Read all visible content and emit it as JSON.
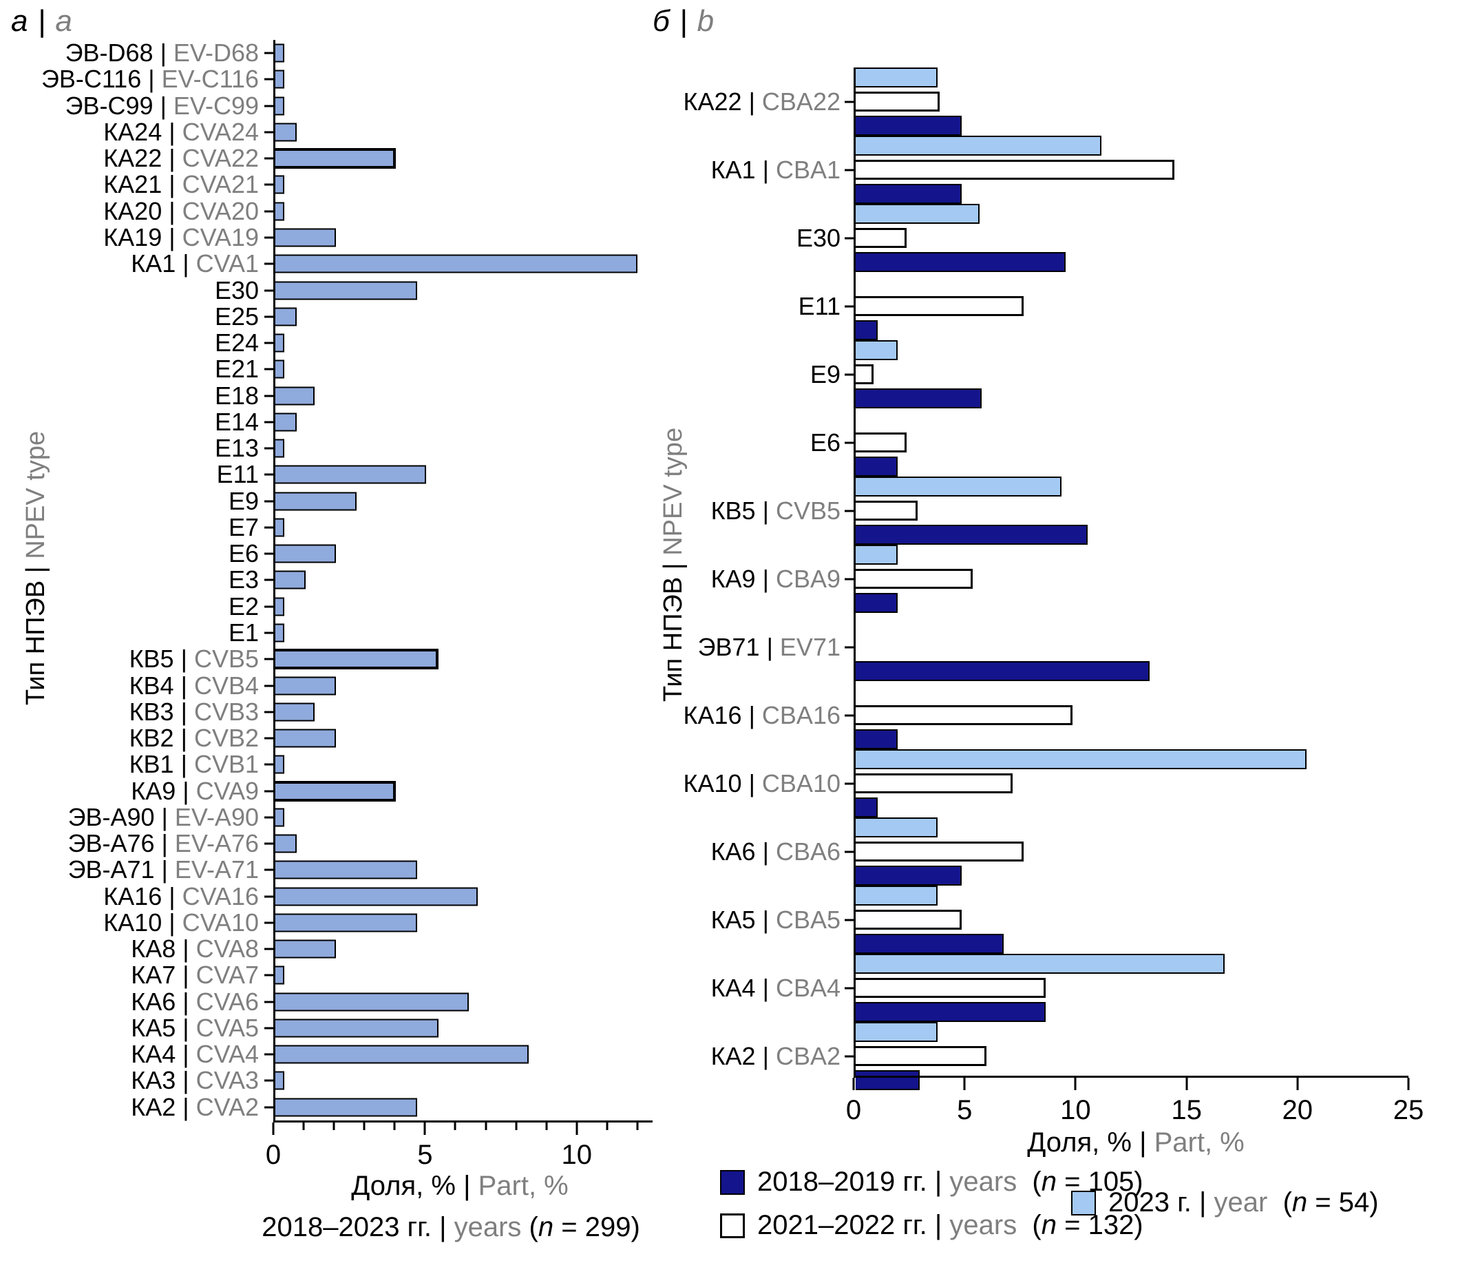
{
  "sep": " | ",
  "n_open": "(",
  "n_symbol": "n",
  "n_eq": " = ",
  "n_close": ")",
  "colors": {
    "bar_a": "#8faadc",
    "series_2018_2019": "#14148c",
    "series_2021_2022": "#ffffff",
    "series_2023": "#a4c9f2",
    "axis": "#000000",
    "secondary_text": "#7f7f7f"
  },
  "chart_data": [
    {
      "id": "a",
      "type": "bar",
      "orientation": "horizontal",
      "panel_label_ru": "а",
      "panel_label_en": "a",
      "ylabel_ru": "Тип НПЭВ",
      "ylabel_en": "NPEV type",
      "xlabel_ru": "Доля, %",
      "xlabel_en": "Part, %",
      "caption": {
        "ru": "2018–2023 гг.",
        "en": "years",
        "n": "299"
      },
      "xlim": [
        0,
        12.5
      ],
      "x_ticks": [
        0,
        5,
        10
      ],
      "x_minor_step": 1,
      "legend_position": "none",
      "grid": false,
      "rows": [
        {
          "ru": "ЭВ-D68",
          "en": "EV-D68",
          "value": 0.3
        },
        {
          "ru": "ЭВ-C116",
          "en": "EV-C116",
          "value": 0.3
        },
        {
          "ru": "ЭВ-C99",
          "en": "EV-C99",
          "value": 0.3
        },
        {
          "ru": "КА24",
          "en": "CVA24",
          "value": 0.7
        },
        {
          "ru": "КА22",
          "en": "CVA22",
          "value": 4.0,
          "bold": true
        },
        {
          "ru": "КА21",
          "en": "CVA21",
          "value": 0.3
        },
        {
          "ru": "КА20",
          "en": "CVA20",
          "value": 0.3
        },
        {
          "ru": "КА19",
          "en": "CVA19",
          "value": 2.0
        },
        {
          "ru": "КА1",
          "en": "CVA1",
          "value": 12.0
        },
        {
          "ru": "E30",
          "value": 4.7
        },
        {
          "ru": "E25",
          "value": 0.7
        },
        {
          "ru": "E24",
          "value": 0.3
        },
        {
          "ru": "E21",
          "value": 0.3
        },
        {
          "ru": "E18",
          "value": 1.3
        },
        {
          "ru": "E14",
          "value": 0.7
        },
        {
          "ru": "E13",
          "value": 0.3
        },
        {
          "ru": "E11",
          "value": 5.0
        },
        {
          "ru": "E9",
          "value": 2.7
        },
        {
          "ru": "E7",
          "value": 0.3
        },
        {
          "ru": "E6",
          "value": 2.0
        },
        {
          "ru": "E3",
          "value": 1.0
        },
        {
          "ru": "E2",
          "value": 0.3
        },
        {
          "ru": "E1",
          "value": 0.3
        },
        {
          "ru": "КВ5",
          "en": "CVB5",
          "value": 5.4,
          "bold": true
        },
        {
          "ru": "КВ4",
          "en": "CVB4",
          "value": 2.0
        },
        {
          "ru": "КВ3",
          "en": "CVB3",
          "value": 1.3
        },
        {
          "ru": "КВ2",
          "en": "CVB2",
          "value": 2.0
        },
        {
          "ru": "КВ1",
          "en": "CVB1",
          "value": 0.3
        },
        {
          "ru": "КА9",
          "en": "CVA9",
          "value": 4.0,
          "bold": true
        },
        {
          "ru": "ЭВ-А90",
          "en": "EV-A90",
          "value": 0.3
        },
        {
          "ru": "ЭВ-А76",
          "en": "EV-A76",
          "value": 0.7
        },
        {
          "ru": "ЭВ-А71",
          "en": "EV-A71",
          "value": 4.7
        },
        {
          "ru": "КА16",
          "en": "CVA16",
          "value": 6.7
        },
        {
          "ru": "КА10",
          "en": "CVA10",
          "value": 4.7
        },
        {
          "ru": "КА8",
          "en": "CVA8",
          "value": 2.0
        },
        {
          "ru": "КА7",
          "en": "CVA7",
          "value": 0.3
        },
        {
          "ru": "КА6",
          "en": "CVA6",
          "value": 6.4
        },
        {
          "ru": "КА5",
          "en": "CVA5",
          "value": 5.4
        },
        {
          "ru": "КА4",
          "en": "CVA4",
          "value": 8.4
        },
        {
          "ru": "КА3",
          "en": "CVA3",
          "value": 0.3
        },
        {
          "ru": "КА2",
          "en": "CVA2",
          "value": 4.7
        }
      ]
    },
    {
      "id": "b",
      "type": "bar",
      "orientation": "horizontal",
      "panel_label_ru": "б",
      "panel_label_en": "b",
      "ylabel_ru": "Тип НПЭВ",
      "ylabel_en": "NPEV type",
      "xlabel_ru": "Доля, %",
      "xlabel_en": "Part, %",
      "xlim": [
        0,
        25
      ],
      "x_ticks": [
        0,
        5,
        10,
        15,
        20,
        25
      ],
      "grid": false,
      "legend_position": "bottom",
      "group_order": [
        "y2023",
        "y2122",
        "y1819"
      ],
      "series": [
        {
          "key": "y1819",
          "label_ru": "2018–2019 гг.",
          "label_en": "years",
          "n": "105",
          "color": "#14148c",
          "border_px": 2
        },
        {
          "key": "y2122",
          "label_ru": "2021–2022 гг.",
          "label_en": "years",
          "n": "132",
          "color": "#ffffff",
          "border_px": 3
        },
        {
          "key": "y2023",
          "label_ru": "2023 г.",
          "label_en": "year",
          "n": "54",
          "color": "#a4c9f2",
          "border_px": 2
        }
      ],
      "rows": [
        {
          "ru": "КА22",
          "en": "CBA22",
          "y2023": 3.7,
          "y2122": 3.8,
          "y1819": 4.8
        },
        {
          "ru": "КА1",
          "en": "CBA1",
          "y2023": 11.1,
          "y2122": 14.4,
          "y1819": 4.8
        },
        {
          "ru": "E30",
          "y2023": 5.6,
          "y2122": 2.3,
          "y1819": 9.5
        },
        {
          "ru": "E11",
          "y2023": 0,
          "y2122": 7.6,
          "y1819": 1.0
        },
        {
          "ru": "E9",
          "y2023": 1.9,
          "y2122": 0.8,
          "y1819": 5.7
        },
        {
          "ru": "E6",
          "y2023": 0,
          "y2122": 2.3,
          "y1819": 1.9
        },
        {
          "ru": "КВ5",
          "en": "CVB5",
          "y2023": 9.3,
          "y2122": 2.8,
          "y1819": 10.5
        },
        {
          "ru": "КА9",
          "en": "CBA9",
          "y2023": 1.9,
          "y2122": 5.3,
          "y1819": 1.9
        },
        {
          "ru": "ЭВ71",
          "en": "EV71",
          "y2023": 0,
          "y2122": 0,
          "y1819": 13.3
        },
        {
          "ru": "КА16",
          "en": "CBA16",
          "y2023": 0,
          "y2122": 9.8,
          "y1819": 1.9
        },
        {
          "ru": "КА10",
          "en": "CBA10",
          "y2023": 20.4,
          "y2122": 7.1,
          "y1819": 1.0
        },
        {
          "ru": "КА6",
          "en": "CBA6",
          "y2023": 3.7,
          "y2122": 7.6,
          "y1819": 4.8
        },
        {
          "ru": "КА5",
          "en": "CBA5",
          "y2023": 3.7,
          "y2122": 4.8,
          "y1819": 6.7
        },
        {
          "ru": "КА4",
          "en": "CBA4",
          "y2023": 16.7,
          "y2122": 8.6,
          "y1819": 8.6
        },
        {
          "ru": "КА2",
          "en": "CBA2",
          "y2023": 3.7,
          "y2122": 5.9,
          "y1819": 2.9
        }
      ]
    }
  ]
}
